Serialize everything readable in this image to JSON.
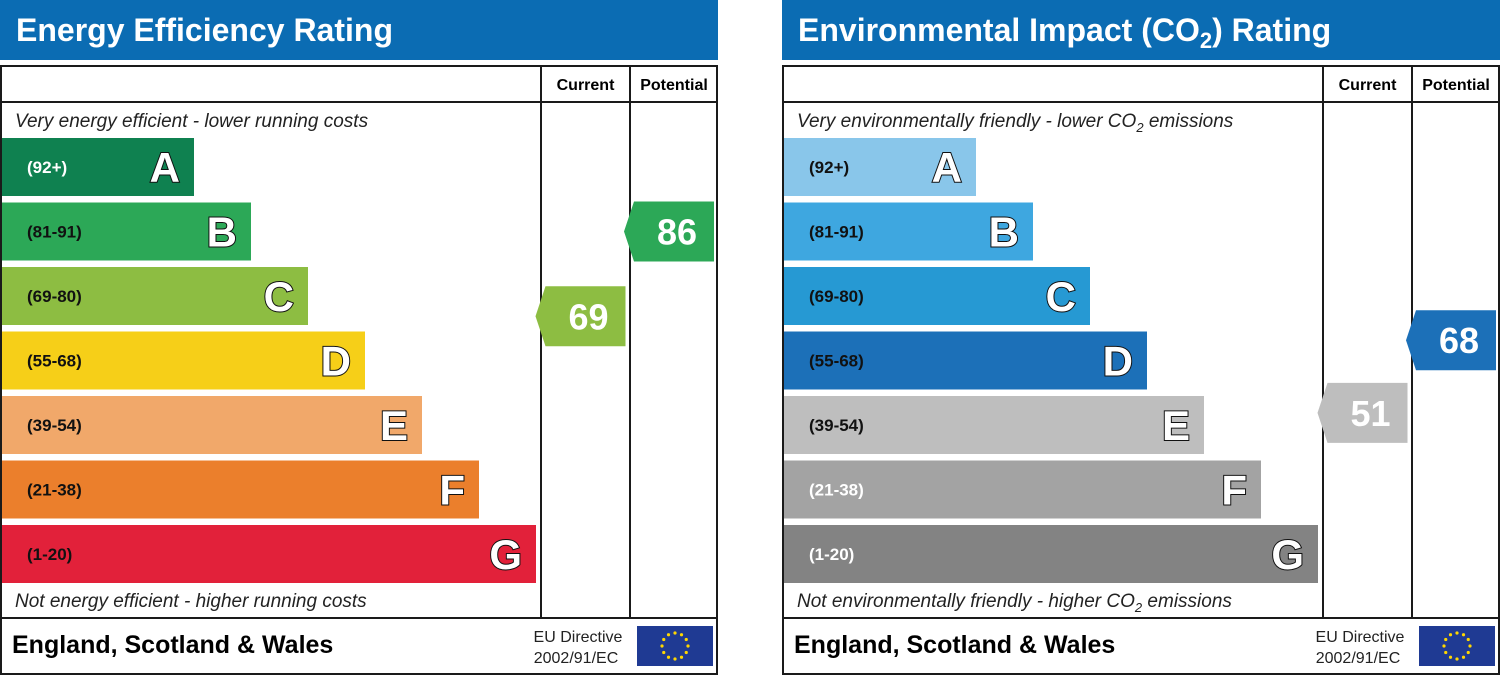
{
  "chart_data": [
    {
      "type": "bar",
      "title": "Energy Efficiency Rating",
      "columns": [
        "Current",
        "Potential"
      ],
      "top_note": "Very energy efficient - lower running costs",
      "bottom_note": "Not energy efficient - higher running costs",
      "footer": "England, Scotland & Wales",
      "directive": [
        "EU Directive",
        "2002/91/EC"
      ],
      "bands": [
        {
          "letter": "A",
          "range": "(92+)",
          "min": 92,
          "max": 100,
          "color": "#0f8150",
          "text_color": "#ffffff"
        },
        {
          "letter": "B",
          "range": "(81-91)",
          "min": 81,
          "max": 91,
          "color": "#2ca857",
          "text_color": "#111111"
        },
        {
          "letter": "C",
          "range": "(69-80)",
          "min": 69,
          "max": 80,
          "color": "#8dbd42",
          "text_color": "#111111"
        },
        {
          "letter": "D",
          "range": "(55-68)",
          "min": 55,
          "max": 68,
          "color": "#f6cf18",
          "text_color": "#111111"
        },
        {
          "letter": "E",
          "range": "(39-54)",
          "min": 39,
          "max": 54,
          "color": "#f1a86a",
          "text_color": "#111111"
        },
        {
          "letter": "F",
          "range": "(21-38)",
          "min": 21,
          "max": 38,
          "color": "#eb7f2c",
          "text_color": "#111111"
        },
        {
          "letter": "G",
          "range": "(1-20)",
          "min": 1,
          "max": 20,
          "color": "#e2213a",
          "text_color": "#111111"
        }
      ],
      "ratings": [
        {
          "column": "Current",
          "value": 69,
          "color": "#8dbd42"
        },
        {
          "column": "Potential",
          "value": 86,
          "color": "#2ca857"
        }
      ]
    },
    {
      "type": "bar",
      "title": "Environmental Impact (CO2) Rating",
      "title_parts": [
        "Environmental Impact (CO",
        "2",
        ") Rating"
      ],
      "columns": [
        "Current",
        "Potential"
      ],
      "top_note": "Very environmentally friendly - lower CO2 emissions",
      "top_note_parts": [
        "Very environmentally friendly - lower CO",
        "2",
        " emissions"
      ],
      "bottom_note": "Not environmentally friendly - higher CO2 emissions",
      "bottom_note_parts": [
        "Not environmentally friendly - higher CO",
        "2",
        " emissions"
      ],
      "footer": "England, Scotland & Wales",
      "directive": [
        "EU Directive",
        "2002/91/EC"
      ],
      "bands": [
        {
          "letter": "A",
          "range": "(92+)",
          "min": 92,
          "max": 100,
          "color": "#89c6ea",
          "text_color": "#111111"
        },
        {
          "letter": "B",
          "range": "(81-91)",
          "min": 81,
          "max": 91,
          "color": "#3ea7e0",
          "text_color": "#111111"
        },
        {
          "letter": "C",
          "range": "(69-80)",
          "min": 69,
          "max": 80,
          "color": "#2699d3",
          "text_color": "#111111"
        },
        {
          "letter": "D",
          "range": "(55-68)",
          "min": 55,
          "max": 68,
          "color": "#1c70b8",
          "text_color": "#111111"
        },
        {
          "letter": "E",
          "range": "(39-54)",
          "min": 39,
          "max": 54,
          "color": "#bebebe",
          "text_color": "#111111"
        },
        {
          "letter": "F",
          "range": "(21-38)",
          "min": 21,
          "max": 38,
          "color": "#a3a3a3",
          "text_color": "#ffffff"
        },
        {
          "letter": "G",
          "range": "(1-20)",
          "min": 1,
          "max": 20,
          "color": "#838383",
          "text_color": "#ffffff"
        }
      ],
      "ratings": [
        {
          "column": "Current",
          "value": 51,
          "color": "#bebebe"
        },
        {
          "column": "Potential",
          "value": 68,
          "color": "#1c70b8"
        }
      ]
    }
  ],
  "colors": {
    "header": "#0b6cb3",
    "border": "#1a1a1a",
    "eu_flag": "#1f3a93",
    "eu_star": "#ffd700"
  }
}
